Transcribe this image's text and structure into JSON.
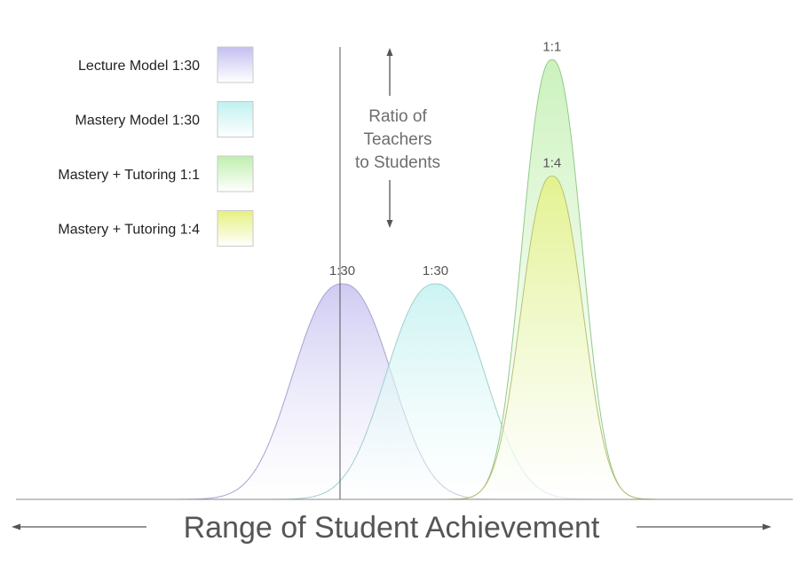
{
  "chart_data": {
    "type": "area",
    "title": "",
    "xlabel": "Range of Student Achievement",
    "ylabel": "",
    "series": [
      {
        "name": "Lecture Model 1:30",
        "ratio": "1:30",
        "color_top": "#c3bff0",
        "color_bottom": "#ffffff",
        "stroke": "#a6a2cf",
        "peak": 1.0,
        "peak_x": 0.42,
        "width": 0.135
      },
      {
        "name": "Mastery Model 1:30",
        "ratio": "1:30",
        "color_top": "#bff0ef",
        "color_bottom": "#ffffff",
        "stroke": "#9ecfcf",
        "peak": 1.0,
        "peak_x": 0.54,
        "width": 0.135
      },
      {
        "name": "Mastery + Tutoring 1:1",
        "ratio": "1:1",
        "color_top": "#bfefad",
        "color_bottom": "#ffffff",
        "stroke": "#93c98a",
        "peak": 2.04,
        "peak_x": 0.69,
        "width": 0.082
      },
      {
        "name": "Mastery + Tutoring 1:4",
        "ratio": "1:4",
        "color_top": "#e5f17f",
        "color_bottom": "#ffffff",
        "stroke": "#b8c176",
        "peak": 1.5,
        "peak_x": 0.69,
        "width": 0.085
      }
    ],
    "annotation": [
      "Ratio of",
      "Teachers",
      "to Students"
    ],
    "legend_position": "top-left",
    "grid": false
  }
}
